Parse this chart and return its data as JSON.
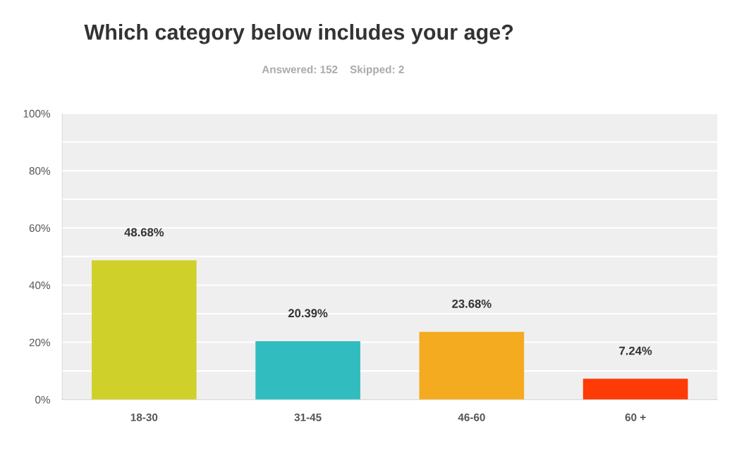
{
  "chart_data": {
    "type": "bar",
    "title": "Which category below includes your age?",
    "subtitle": "Answered: 152    Skipped: 2",
    "categories": [
      "18-30",
      "31-45",
      "46-60",
      "60 +"
    ],
    "values": [
      48.68,
      20.39,
      23.68,
      7.24
    ],
    "colors": [
      "#cfd12a",
      "#31bdbf",
      "#f5ab1f",
      "#fe3a07"
    ],
    "value_labels": [
      "48.68%",
      "20.39%",
      "23.68%",
      "7.24%"
    ],
    "ylim": [
      0,
      100
    ],
    "yticks": [
      {
        "value": 0,
        "label": "0%"
      },
      {
        "value": 10,
        "label": null
      },
      {
        "value": 20,
        "label": "20%"
      },
      {
        "value": 30,
        "label": null
      },
      {
        "value": 40,
        "label": "40%"
      },
      {
        "value": 50,
        "label": null
      },
      {
        "value": 60,
        "label": "60%"
      },
      {
        "value": 70,
        "label": null
      },
      {
        "value": 80,
        "label": "80%"
      },
      {
        "value": 90,
        "label": null
      },
      {
        "value": 100,
        "label": "100%"
      }
    ],
    "grid": "y",
    "legend": false
  }
}
